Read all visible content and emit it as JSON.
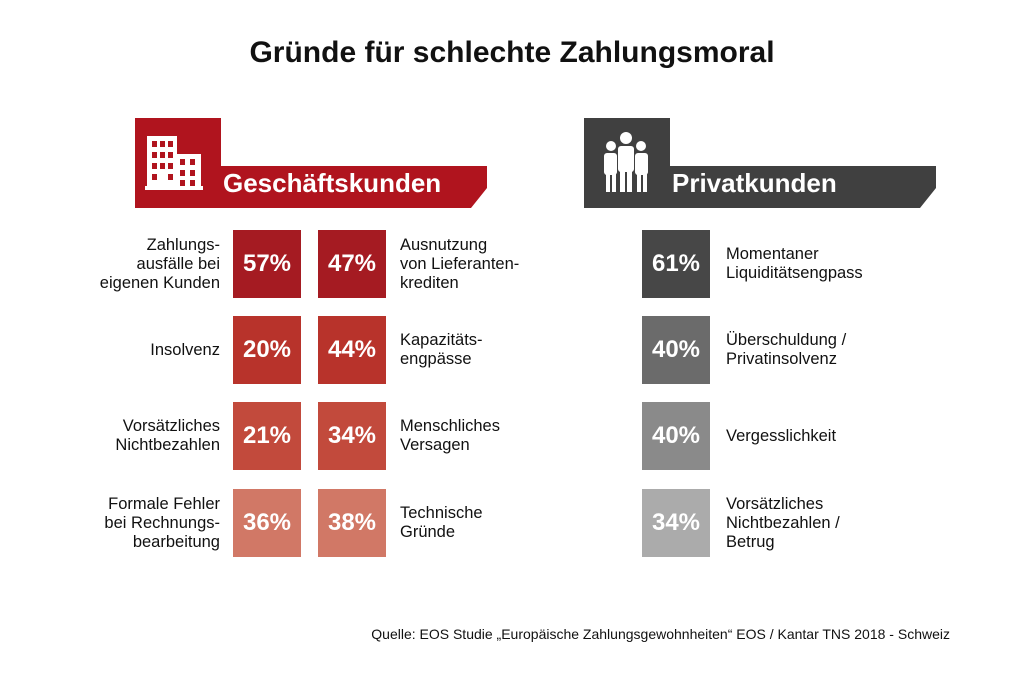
{
  "title": "Gründe für schlechte Zahlungsmoral",
  "source": "Quelle: EOS Studie „Europäische Zahlungsgewohnheiten“ EOS / Kantar TNS 2018 - Schweiz",
  "colors": {
    "business_banner": "#b0141e",
    "private_banner": "#404040",
    "business_rows": [
      "#a51b22",
      "#b8332b",
      "#c24a3c",
      "#d17866"
    ],
    "private_rows": [
      "#474747",
      "#6b6b6b",
      "#8a8a8a",
      "#ababab"
    ]
  },
  "chart_data": {
    "type": "table",
    "title": "Gründe für schlechte Zahlungsmoral",
    "groups": [
      {
        "name": "Geschäftskunden",
        "icon": "building-icon",
        "left_column": [
          {
            "label": "Zahlungs-\nausfälle bei\neigenen Kunden",
            "value_label": "57%",
            "value": 57
          },
          {
            "label": "Insolvenz",
            "value_label": "20%",
            "value": 20
          },
          {
            "label": "Vorsätzliches\nNichtbezahlen",
            "value_label": "21%",
            "value": 21
          },
          {
            "label": "Formale Fehler\nbei Rechnungs-\nbearbeitung",
            "value_label": "36%",
            "value": 36
          }
        ],
        "right_column": [
          {
            "label": "Ausnutzung\nvon Lieferanten-\nkrediten",
            "value_label": "47%",
            "value": 47
          },
          {
            "label": "Kapazitäts-\nengpässe",
            "value_label": "44%",
            "value": 44
          },
          {
            "label": "Menschliches\nVersagen",
            "value_label": "34%",
            "value": 34
          },
          {
            "label": "Technische\nGründe",
            "value_label": "38%",
            "value": 38
          }
        ]
      },
      {
        "name": "Privatkunden",
        "icon": "people-icon",
        "items": [
          {
            "label": "Momentaner\nLiquiditätsengpass",
            "value_label": "61%",
            "value": 61
          },
          {
            "label": "Überschuldung /\nPrivatinsolvenz",
            "value_label": "40%",
            "value": 40
          },
          {
            "label": "Vergesslichkeit",
            "value_label": "40%",
            "value": 40
          },
          {
            "label": "Vorsätzliches\nNichtbezahlen /\nBetrug",
            "value_label": "34%",
            "value": 34
          }
        ]
      }
    ]
  }
}
